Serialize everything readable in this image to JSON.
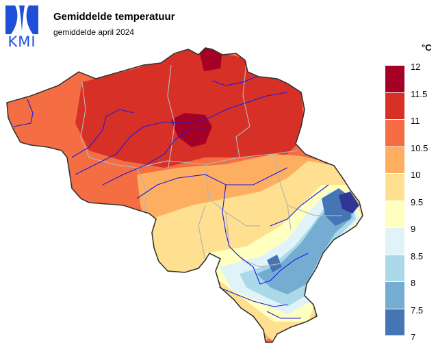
{
  "header": {
    "title": "Gemiddelde temperatuur",
    "subtitle": "gemiddelde april 2024",
    "logo_text": "KMI"
  },
  "legend": {
    "unit": "°C",
    "labels": [
      "12",
      "11.5",
      "11",
      "10.5",
      "10",
      "9.5",
      "9",
      "8.5",
      "8",
      "7.5",
      "7"
    ],
    "colors": [
      "#a50026",
      "#d73027",
      "#f46d43",
      "#fdae61",
      "#fee090",
      "#ffffbf",
      "#e0f3f8",
      "#abd9e9",
      "#74add1",
      "#4575b4",
      "#313695"
    ]
  },
  "colors": {
    "logo": "#1f4fd8",
    "rivers": "#1a1ae6",
    "borders": "#b4b4b4",
    "outline": "#333333"
  }
}
